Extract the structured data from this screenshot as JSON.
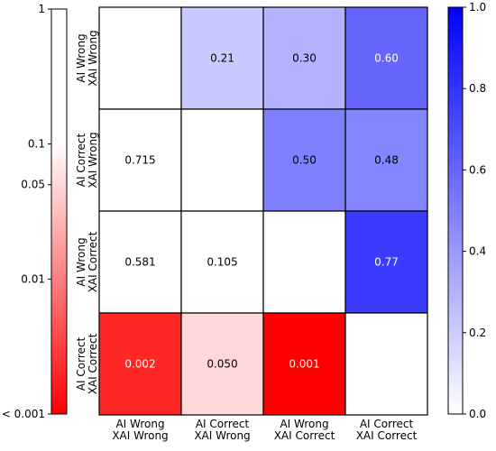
{
  "chart_data": {
    "type": "heatmap",
    "row_labels": [
      [
        "AI Wrong",
        "XAI Wrong"
      ],
      [
        "AI Correct",
        "XAI Wrong"
      ],
      [
        "AI Wrong",
        "XAI Correct"
      ],
      [
        "AI Correct",
        "XAI Correct"
      ]
    ],
    "col_labels": [
      [
        "AI Wrong",
        "XAI Wrong"
      ],
      [
        "AI Correct",
        "XAI Wrong"
      ],
      [
        "AI Wrong",
        "XAI Correct"
      ],
      [
        "AI Correct",
        "XAI Correct"
      ]
    ],
    "upper_triangle": {
      "description_scale": "effect",
      "cells": [
        {
          "row": 0,
          "col": 1,
          "value": 0.21,
          "label": "0.21"
        },
        {
          "row": 0,
          "col": 2,
          "value": 0.3,
          "label": "0.30"
        },
        {
          "row": 0,
          "col": 3,
          "value": 0.6,
          "label": "0.60"
        },
        {
          "row": 1,
          "col": 2,
          "value": 0.5,
          "label": "0.50"
        },
        {
          "row": 1,
          "col": 3,
          "value": 0.48,
          "label": "0.48"
        },
        {
          "row": 2,
          "col": 3,
          "value": 0.77,
          "label": "0.77"
        }
      ]
    },
    "lower_triangle": {
      "cells": [
        {
          "row": 1,
          "col": 0,
          "value": 0.715,
          "label": "0.715"
        },
        {
          "row": 2,
          "col": 0,
          "value": 0.581,
          "label": "0.581"
        },
        {
          "row": 2,
          "col": 1,
          "value": 0.105,
          "label": "0.105"
        },
        {
          "row": 3,
          "col": 0,
          "value": 0.002,
          "label": "0.002"
        },
        {
          "row": 3,
          "col": 1,
          "value": 0.05,
          "label": "0.050"
        },
        {
          "row": 3,
          "col": 2,
          "value": 0.001,
          "label": "0.001"
        }
      ]
    },
    "left_colorbar": {
      "scale": "log",
      "range": [
        0.001,
        1
      ],
      "threshold": 0.1,
      "color_low": "#ff0000",
      "color_high": "#ffffff",
      "ticks": [
        {
          "value": 1,
          "label": "1"
        },
        {
          "value": 0.1,
          "label": "0.1"
        },
        {
          "value": 0.05,
          "label": "0.05"
        },
        {
          "value": 0.01,
          "label": "0.01"
        },
        {
          "value": 0.001,
          "label": "< 0.001"
        }
      ]
    },
    "right_colorbar": {
      "scale": "linear",
      "range": [
        0,
        1
      ],
      "color_low": "#ffffff",
      "color_high": "#0000ff",
      "ticks": [
        {
          "value": 0.0,
          "label": "0.0"
        },
        {
          "value": 0.2,
          "label": "0.2"
        },
        {
          "value": 0.4,
          "label": "0.4"
        },
        {
          "value": 0.6,
          "label": "0.6"
        },
        {
          "value": 0.8,
          "label": "0.8"
        },
        {
          "value": 1.0,
          "label": "1.0"
        }
      ]
    },
    "diagonal_color": "#ffffff",
    "grid": true,
    "title": "",
    "xlabel": "",
    "ylabel": ""
  }
}
